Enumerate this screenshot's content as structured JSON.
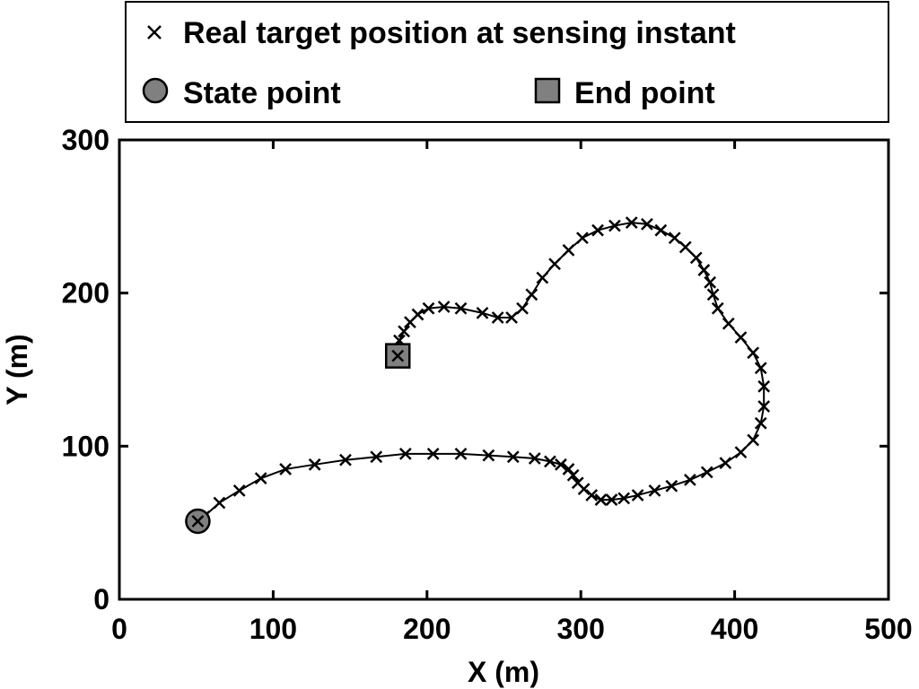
{
  "chart_data": {
    "type": "scatter",
    "title": "",
    "xlabel": "X (m)",
    "ylabel": "Y (m)",
    "xlim": [
      0,
      500
    ],
    "ylim": [
      0,
      300
    ],
    "xticks": [
      0,
      100,
      200,
      300,
      400,
      500
    ],
    "yticks": [
      0,
      100,
      200,
      300
    ],
    "grid": false,
    "legend_position": "top",
    "legend": {
      "real": "Real target position at sensing instant",
      "start": "State point",
      "end": "End point"
    },
    "colors": {
      "marker": "#000000",
      "start_fill": "#808080",
      "end_fill": "#808080"
    },
    "start_point": {
      "x": 51,
      "y": 51
    },
    "end_point": {
      "x": 181,
      "y": 159
    },
    "series": [
      {
        "name": "Real target position at sensing instant",
        "marker": "x",
        "points": [
          [
            51,
            51
          ],
          [
            55,
            54
          ],
          [
            65,
            63
          ],
          [
            78,
            71
          ],
          [
            92,
            79
          ],
          [
            108,
            85
          ],
          [
            127,
            88
          ],
          [
            147,
            91
          ],
          [
            167,
            93
          ],
          [
            186,
            95
          ],
          [
            204,
            95
          ],
          [
            222,
            95
          ],
          [
            240,
            94
          ],
          [
            256,
            93
          ],
          [
            270,
            92
          ],
          [
            280,
            90
          ],
          [
            287,
            88
          ],
          [
            292,
            85
          ],
          [
            295,
            81
          ],
          [
            298,
            76
          ],
          [
            302,
            72
          ],
          [
            307,
            68
          ],
          [
            313,
            65
          ],
          [
            320,
            65
          ],
          [
            328,
            66
          ],
          [
            337,
            68
          ],
          [
            348,
            71
          ],
          [
            359,
            74
          ],
          [
            371,
            78
          ],
          [
            382,
            83
          ],
          [
            394,
            89
          ],
          [
            404,
            96
          ],
          [
            412,
            104
          ],
          [
            417,
            115
          ],
          [
            419,
            126
          ],
          [
            419,
            139
          ],
          [
            417,
            151
          ],
          [
            412,
            161
          ],
          [
            404,
            171
          ],
          [
            396,
            180
          ],
          [
            389,
            190
          ],
          [
            386,
            199
          ],
          [
            384,
            207
          ],
          [
            380,
            215
          ],
          [
            375,
            223
          ],
          [
            368,
            230
          ],
          [
            361,
            236
          ],
          [
            352,
            241
          ],
          [
            343,
            245
          ],
          [
            333,
            246
          ],
          [
            322,
            244
          ],
          [
            311,
            241
          ],
          [
            301,
            236
          ],
          [
            292,
            228
          ],
          [
            283,
            219
          ],
          [
            275,
            210
          ],
          [
            268,
            199
          ],
          [
            262,
            190
          ],
          [
            255,
            184
          ],
          [
            246,
            184
          ],
          [
            236,
            187
          ],
          [
            222,
            190
          ],
          [
            211,
            191
          ],
          [
            201,
            190
          ],
          [
            194,
            186
          ],
          [
            189,
            181
          ],
          [
            185,
            175
          ],
          [
            182,
            169
          ],
          [
            181,
            163
          ],
          [
            181,
            159
          ]
        ]
      }
    ]
  }
}
